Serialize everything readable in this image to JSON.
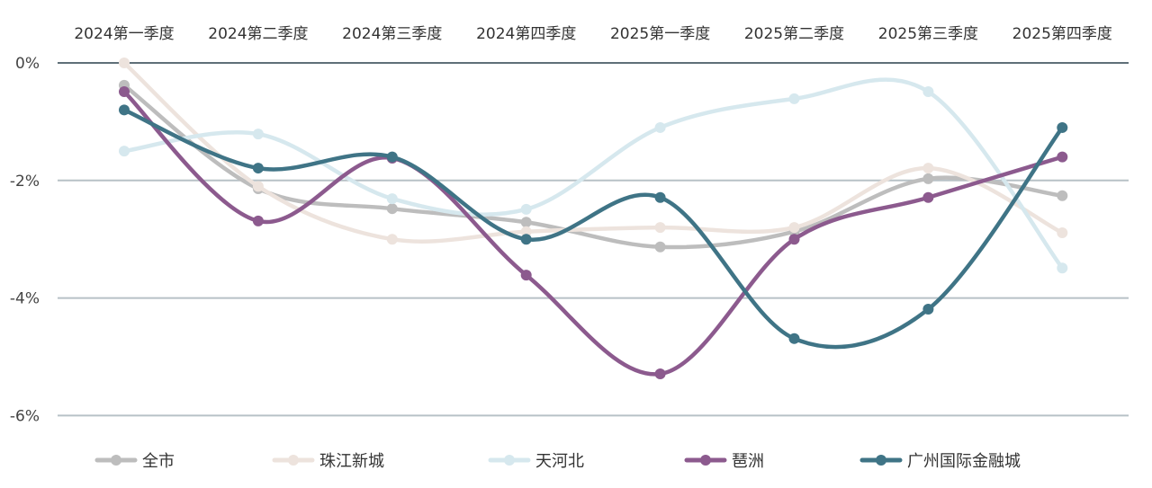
{
  "chart_data": {
    "type": "line",
    "categories": [
      "2024第一季度",
      "2024第二季度",
      "2024第三季度",
      "2024第四季度",
      "2025第一季度",
      "2025第二季度",
      "2025第三季度",
      "2025第四季度"
    ],
    "ylim": [
      -6,
      0
    ],
    "yticks": [
      0,
      -2,
      -4,
      -6
    ],
    "ytick_labels": [
      "0%",
      "-2%",
      "-4%",
      "-6%"
    ],
    "grid": true,
    "legend_position": "bottom",
    "x_labels_position": "top",
    "series": [
      {
        "name": "全市",
        "color": "#bdbdbd",
        "values": [
          -0.38,
          -2.14,
          -2.48,
          -2.71,
          -3.13,
          -2.87,
          -1.97,
          -2.26
        ]
      },
      {
        "name": "珠江新城",
        "color": "#ede3dd",
        "values": [
          0.0,
          -2.1,
          -3.0,
          -2.87,
          -2.8,
          -2.8,
          -1.79,
          -2.89
        ]
      },
      {
        "name": "天河北",
        "color": "#d6e8ee",
        "values": [
          -1.5,
          -1.21,
          -2.31,
          -2.49,
          -1.1,
          -0.61,
          -0.49,
          -3.49
        ]
      },
      {
        "name": "琶洲",
        "color": "#8c5a8e",
        "values": [
          -0.49,
          -2.69,
          -1.62,
          -3.61,
          -5.29,
          -3.0,
          -2.29,
          -1.6
        ]
      },
      {
        "name": "广州国际金融城",
        "color": "#3f7486",
        "values": [
          -0.8,
          -1.79,
          -1.6,
          -3.0,
          -2.29,
          -4.69,
          -4.19,
          -1.1
        ]
      }
    ]
  }
}
